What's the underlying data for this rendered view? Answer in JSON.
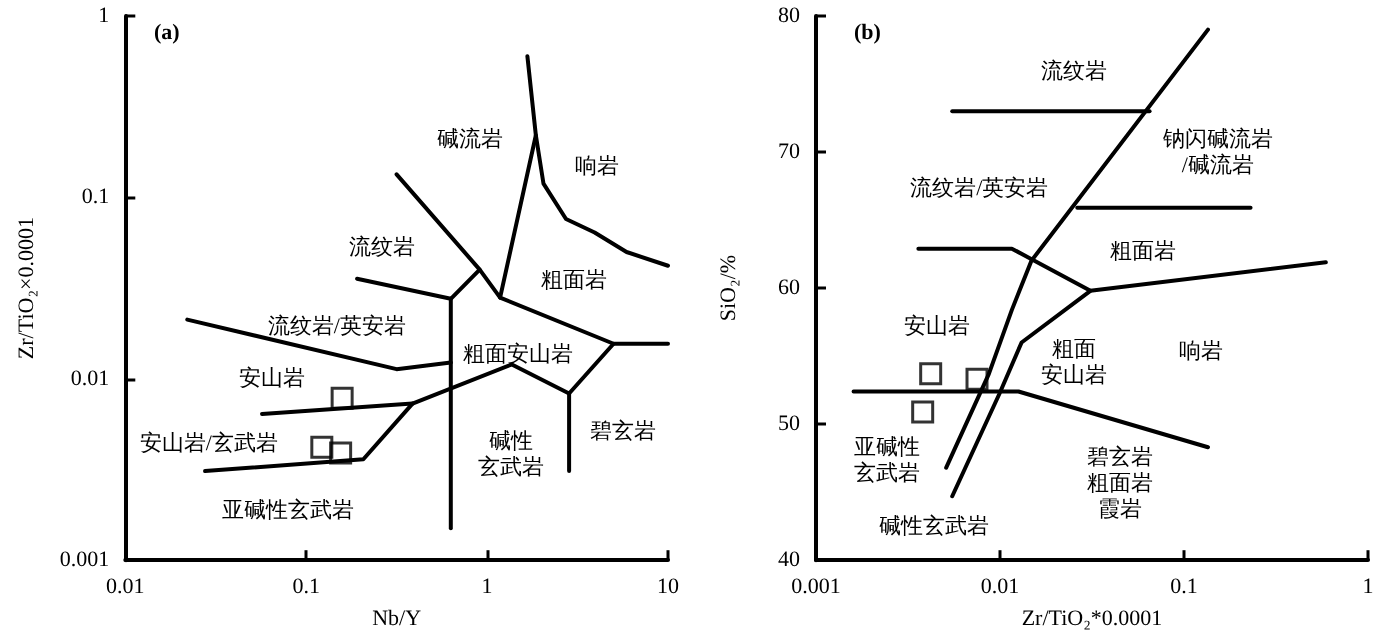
{
  "chart_data": [
    {
      "type": "scatter",
      "title": "(a)",
      "xlabel": "Nb/Y",
      "ylabel": "Zr/TiO₂×0.0001",
      "log": "xy",
      "xlim": [
        0.01,
        10
      ],
      "ylim": [
        0.001,
        1
      ],
      "xticks": [
        0.01,
        0.1,
        1,
        10
      ],
      "yticks": [
        0.001,
        0.01,
        0.1,
        1
      ],
      "series": [
        {
          "type": "scatter",
          "marker": "square",
          "color": "#000000",
          "x": [
            0.158,
            0.122,
            0.155
          ],
          "values": [
            0.0078,
            0.0042,
            0.0039
          ]
        },
        {
          "type": "line",
          "marker": "none",
          "line_style": "solid",
          "color": "#000000",
          "x": [
            0.316,
            0.91,
            1.18
          ],
          "values": [
            0.134,
            0.04,
            0.028
          ]
        },
        {
          "type": "line",
          "marker": "none",
          "line_style": "solid",
          "color": "#000000",
          "x": [
            1.67,
            1.86,
            1.18,
            5.0,
            10
          ],
          "values": [
            0.6,
            0.22,
            0.028,
            0.0156,
            0.0156
          ]
        },
        {
          "type": "line",
          "marker": "none",
          "line_style": "solid",
          "color": "#000000",
          "x": [
            1.86,
            2.05,
            2.73,
            3.93,
            5.9,
            10
          ],
          "values": [
            0.22,
            0.119,
            0.076,
            0.064,
            0.05,
            0.042
          ]
        },
        {
          "type": "line",
          "marker": "none",
          "line_style": "solid",
          "color": "#000000",
          "x": [
            0.191,
            0.63,
            0.91
          ],
          "values": [
            0.0356,
            0.0276,
            0.04
          ]
        },
        {
          "type": "line",
          "marker": "none",
          "line_style": "solid",
          "color": "#000000",
          "x": [
            0.63,
            0.63
          ],
          "values": [
            0.0276,
            0.0015
          ]
        },
        {
          "type": "line",
          "marker": "none",
          "line_style": "solid",
          "color": "#000000",
          "x": [
            0.022,
            0.316,
            0.63
          ],
          "values": [
            0.0212,
            0.0113,
            0.0123
          ]
        },
        {
          "type": "line",
          "marker": "none",
          "line_style": "solid",
          "color": "#000000",
          "x": [
            0.057,
            0.387,
            1.37,
            2.84,
            5.0
          ],
          "values": [
            0.0064,
            0.0073,
            0.012,
            0.0083,
            0.0156
          ]
        },
        {
          "type": "line",
          "marker": "none",
          "line_style": "solid",
          "color": "#000000",
          "x": [
            2.84,
            2.84
          ],
          "values": [
            0.0083,
            0.0031
          ]
        },
        {
          "type": "line",
          "marker": "none",
          "line_style": "solid",
          "color": "#000000",
          "x": [
            0.0276,
            0.207,
            0.387
          ],
          "values": [
            0.0031,
            0.0036,
            0.0073
          ]
        }
      ],
      "annotations": [
        "碱流岩",
        "响岩",
        "流纹岩",
        "粗面岩",
        "流纹岩/英安岩",
        "粗面安山岩",
        "安山岩",
        "碧玄岩",
        "安山岩/玄武岩",
        "碱性玄武岩",
        "亚碱性玄武岩"
      ]
    },
    {
      "type": "scatter",
      "title": "(b)",
      "xlabel": "Zr/TiO₂*0.0001",
      "ylabel": "SiO₂/%",
      "log": "x",
      "xlim": [
        0.001,
        1
      ],
      "ylim": [
        40,
        80
      ],
      "xticks": [
        0.001,
        0.01,
        0.1,
        1
      ],
      "yticks": [
        40,
        50,
        60,
        70,
        80
      ],
      "series": [
        {
          "type": "scatter",
          "marker": "square",
          "color": "#000000",
          "x": [
            0.0042,
            0.0075,
            0.0038
          ],
          "values": [
            53.7,
            53.3,
            50.9
          ]
        },
        {
          "type": "line",
          "marker": "none",
          "line_style": "solid",
          "color": "#000000",
          "x": [
            0.0055,
            0.065
          ],
          "values": [
            73,
            73
          ]
        },
        {
          "type": "line",
          "marker": "none",
          "line_style": "solid",
          "color": "#000000",
          "x": [
            0.0051,
            0.0087,
            0.0116,
            0.0148,
            0.135
          ],
          "values": [
            46.8,
            53.7,
            58.4,
            62,
            79
          ]
        },
        {
          "type": "line",
          "marker": "none",
          "line_style": "solid",
          "color": "#000000",
          "x": [
            0.0055,
            0.0099,
            0.0131,
            0.031,
            0.59
          ],
          "values": [
            44.7,
            52.2,
            56,
            59.8,
            61.9
          ]
        },
        {
          "type": "line",
          "marker": "none",
          "line_style": "solid",
          "color": "#000000",
          "x": [
            0.0263,
            0.23
          ],
          "values": [
            65.9,
            65.9
          ]
        },
        {
          "type": "line",
          "marker": "none",
          "line_style": "solid",
          "color": "#000000",
          "x": [
            0.0036,
            0.0116,
            0.031
          ],
          "values": [
            62.9,
            62.9,
            59.8
          ]
        },
        {
          "type": "line",
          "marker": "none",
          "line_style": "solid",
          "color": "#000000",
          "x": [
            0.0016,
            0.0126,
            0.135
          ],
          "values": [
            52.4,
            52.4,
            48.3
          ]
        }
      ],
      "annotations": [
        "流纹岩",
        "钠闪碱流岩/碱流岩",
        "流纹岩/英安岩",
        "粗面岩",
        "安山岩",
        "粗面安山岩",
        "响岩",
        "亚碱性玄武岩",
        "碧玄岩粗面岩霞岩",
        "碱性玄武岩"
      ]
    }
  ]
}
